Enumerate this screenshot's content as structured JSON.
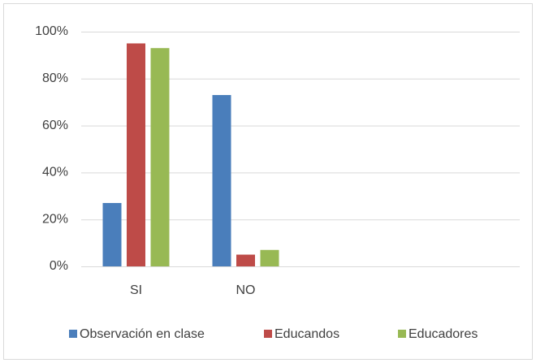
{
  "chart_data": {
    "type": "bar",
    "categories": [
      "SI",
      "NO",
      null,
      null
    ],
    "series": [
      {
        "name": "Observación en clase",
        "color": "#4a7ebb",
        "values": [
          27,
          73,
          null,
          null
        ]
      },
      {
        "name": "Educandos",
        "color": "#be4b48",
        "values": [
          95,
          5,
          null,
          null
        ]
      },
      {
        "name": "Educadores",
        "color": "#98b954",
        "values": [
          93,
          7,
          null,
          null
        ]
      }
    ],
    "ylim": [
      0,
      100
    ],
    "yticks": [
      {
        "value": 0,
        "label": "0%"
      },
      {
        "value": 20,
        "label": "20%"
      },
      {
        "value": 40,
        "label": "40%"
      },
      {
        "value": 60,
        "label": "60%"
      },
      {
        "value": 80,
        "label": "80%"
      },
      {
        "value": 100,
        "label": "100%"
      }
    ],
    "grid": true,
    "legend": "bottom"
  }
}
